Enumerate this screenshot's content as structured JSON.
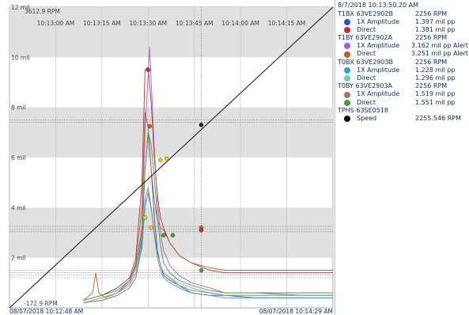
{
  "chart_data": {
    "type": "line",
    "y_axis": {
      "unit": "mil",
      "ylim": [
        0,
        12
      ],
      "tick_labels": [
        "2 mil",
        "4 mil",
        "6 mil",
        "8 mil",
        "10 mil",
        "12 mil"
      ]
    },
    "speed_axis": {
      "max_label": "3612.9 RPM",
      "min_label": "-172.9 RPM"
    },
    "x_axis": {
      "time_ticks": [
        "10:13:00 AM",
        "10:13:15 AM",
        "10:13:30 AM",
        "10:13:45 AM",
        "10:14:00 AM",
        "10:14:15 AM"
      ],
      "start_label": "08/07/2018 10:12:48 AM",
      "end_label": "08/07/2018 10:14:29 AM"
    },
    "cursor_time": "8/7/2018 10:13:50.20 AM",
    "shaded_bands": [
      [
        2,
        4
      ],
      [
        6,
        8
      ],
      [
        10,
        12
      ]
    ],
    "alert_lines_mil": [
      1.2,
      1.3,
      1.4,
      1.5,
      3.05,
      3.15,
      3.25,
      7.4,
      7.5
    ],
    "series": [
      {
        "name": "T1BX 63VE2902B 1X Amplitude",
        "color": "#2a4fd8",
        "x": [
          48,
          60,
          70,
          78,
          82,
          86,
          88,
          90,
          92,
          94,
          96,
          98,
          100,
          104,
          110,
          118,
          130,
          140,
          160,
          190,
          210
        ],
        "y": [
          0.2,
          0.4,
          0.6,
          0.9,
          1.4,
          2.8,
          5.5,
          7.0,
          5.5,
          3.6,
          2.3,
          1.7,
          1.3,
          1.1,
          0.9,
          0.6,
          0.5,
          0.5,
          0.4,
          0.4,
          0.4
        ]
      },
      {
        "name": "T1BX 63VE2902B Direct",
        "color": "#c03030",
        "x": [
          48,
          60,
          70,
          78,
          82,
          86,
          88,
          90,
          92,
          94,
          96,
          98,
          100,
          104,
          110,
          118,
          130,
          140,
          160,
          190,
          210
        ],
        "y": [
          0.3,
          0.5,
          0.8,
          1.2,
          2.0,
          5.0,
          9.5,
          9.6,
          8.2,
          6.0,
          4.5,
          3.6,
          3.2,
          2.6,
          2.1,
          1.8,
          1.5,
          1.4,
          1.4,
          1.4,
          1.4
        ]
      },
      {
        "name": "T1BY 63VE2902A 1X Amplitude",
        "color": "#a060d0",
        "x": [
          48,
          60,
          70,
          78,
          82,
          86,
          88,
          90,
          91,
          92,
          94,
          96,
          98,
          100,
          104,
          110,
          118,
          130,
          140,
          160,
          190,
          210
        ],
        "y": [
          0.2,
          0.4,
          0.6,
          1.0,
          1.6,
          3.2,
          7.0,
          9.3,
          10.4,
          9.0,
          6.4,
          4.2,
          3.0,
          2.3,
          1.7,
          1.3,
          1.0,
          0.8,
          0.6,
          0.6,
          0.5,
          0.5
        ]
      },
      {
        "name": "T1BY 63VE2902A Direct",
        "color": "#b8602a",
        "x": [
          48,
          54,
          56,
          58,
          62,
          70,
          78,
          82,
          86,
          88,
          90,
          92,
          94,
          96,
          98,
          100,
          104,
          110,
          118,
          130,
          140,
          160,
          190,
          210
        ],
        "y": [
          0.3,
          0.6,
          1.4,
          0.6,
          0.4,
          0.6,
          1.1,
          1.8,
          4.0,
          7.8,
          7.2,
          5.5,
          4.3,
          3.5,
          3.2,
          3.1,
          2.6,
          2.1,
          1.8,
          1.6,
          1.5,
          1.5,
          1.5,
          1.5
        ]
      },
      {
        "name": "T0BX 63VE2903B 1X Amplitude",
        "color": "#3a9ec4",
        "x": [
          48,
          60,
          70,
          78,
          82,
          86,
          88,
          90,
          92,
          94,
          96,
          98,
          100,
          104,
          110,
          118,
          130,
          140,
          160,
          190,
          210
        ],
        "y": [
          0.2,
          0.3,
          0.5,
          0.8,
          1.2,
          2.4,
          4.0,
          4.6,
          4.0,
          2.9,
          2.0,
          1.5,
          1.2,
          1.0,
          0.8,
          0.6,
          0.5,
          0.4,
          0.4,
          0.4,
          0.4
        ]
      },
      {
        "name": "T0BX 63VE2903B Direct",
        "color": "#7bc6c0",
        "x": [
          48,
          60,
          70,
          78,
          82,
          86,
          88,
          90,
          92,
          94,
          96,
          98,
          100,
          104,
          110,
          118,
          130,
          140,
          160,
          190,
          210
        ],
        "y": [
          0.2,
          0.4,
          0.6,
          0.9,
          1.4,
          2.6,
          4.2,
          4.5,
          3.9,
          3.0,
          2.2,
          1.7,
          1.4,
          1.2,
          1.0,
          0.8,
          0.6,
          0.5,
          0.5,
          0.5,
          0.5
        ]
      },
      {
        "name": "T0BY 63VE2903A 1X Amplitude",
        "color": "#9a7a6a",
        "x": [
          48,
          60,
          70,
          78,
          82,
          86,
          88,
          90,
          92,
          94,
          96,
          98,
          100,
          104,
          110,
          118,
          130,
          140,
          160,
          190,
          210
        ],
        "y": [
          0.2,
          0.3,
          0.5,
          0.8,
          1.2,
          2.5,
          4.3,
          4.8,
          4.0,
          3.0,
          2.2,
          1.7,
          1.4,
          1.2,
          0.9,
          0.7,
          0.6,
          0.5,
          0.5,
          0.5,
          0.5
        ]
      },
      {
        "name": "T0BY 63VE2903A Direct",
        "color": "#40a040",
        "x": [
          48,
          60,
          70,
          78,
          82,
          86,
          88,
          90,
          92,
          94,
          96,
          98,
          100,
          104,
          110,
          118,
          130,
          140,
          160,
          190,
          210
        ],
        "y": [
          0.3,
          0.5,
          0.7,
          1.1,
          1.7,
          3.0,
          5.5,
          7.0,
          6.5,
          5.2,
          3.6,
          2.5,
          1.8,
          1.4,
          1.1,
          0.9,
          0.7,
          0.6,
          0.6,
          0.6,
          0.6
        ]
      },
      {
        "name": "TPHS 63SE0518 Speed",
        "color": "#202020",
        "x": [
          0,
          210
        ],
        "y": [
          0,
          12
        ]
      }
    ],
    "cursor_points": [
      {
        "series": "T1BY 63VE2902A Direct",
        "x": 91,
        "y": 7.25,
        "color": "#b8602a"
      },
      {
        "series": "T1BX 63VE2902B Direct",
        "x": 90,
        "y": 9.5,
        "color": "#c03030"
      },
      {
        "series": "TPHS 63SE0518 Speed",
        "x": 124.5,
        "y": 7.3,
        "color": "#202020"
      },
      {
        "series": "T0BY 63VE2903A Direct",
        "x": 100,
        "y": 2.9,
        "color": "#40a040"
      },
      {
        "series": "T0BY 63VE2903A Direct",
        "x": 106,
        "y": 2.9,
        "color": "#40a040"
      },
      {
        "series": "T1BY 63VE2902A Direct",
        "x": 124.5,
        "y": 3.2,
        "color": "#b8602a"
      },
      {
        "series": "T1BX 63VE2902B Direct",
        "x": 124.5,
        "y": 3.1,
        "color": "#c03030"
      },
      {
        "series": "T0BY 63VE2903A Direct",
        "x": 124.5,
        "y": 1.5,
        "color": "#40a040"
      },
      {
        "series": "marker",
        "x": 98,
        "y": 5.9,
        "color": "#e8d020"
      },
      {
        "series": "marker",
        "x": 102,
        "y": 5.95,
        "color": "#e8d020"
      },
      {
        "series": "marker",
        "x": 88,
        "y": 3.6,
        "color": "#e8d020"
      },
      {
        "series": "marker",
        "x": 92,
        "y": 3.2,
        "color": "#e8d020"
      }
    ]
  },
  "legend": {
    "timestamp": "8/7/2018 10:13:50.20 AM",
    "groups": [
      {
        "name": "T1BX 63VE2902B",
        "value": "2256 RPM",
        "rows": [
          {
            "label": "1X Amplitude",
            "value": "1.397 mil pp",
            "color": "#2a4fd8"
          },
          {
            "label": "Direct",
            "value": "1.381 mil pp",
            "color": "#c03030"
          }
        ]
      },
      {
        "name": "T1BY 63VE2902A",
        "value": "2256 RPM",
        "rows": [
          {
            "label": "1X Amplitude",
            "value": "3.162 mil pp Alert",
            "color": "#a060d0"
          },
          {
            "label": "Direct",
            "value": "3.251 mil pp Alert",
            "color": "#b8602a"
          }
        ]
      },
      {
        "name": "T0BX 63VE2903B",
        "value": "2256 RPM",
        "rows": [
          {
            "label": "1X Amplitude",
            "value": "1.228 mil pp",
            "color": "#3a9ec4"
          },
          {
            "label": "Direct",
            "value": "1.296 mil pp",
            "color": "#7bc6c0"
          }
        ]
      },
      {
        "name": "T0BY 63VE2903A",
        "value": "2256 RPM",
        "rows": [
          {
            "label": "1X Amplitude",
            "value": "1.519 mil pp",
            "color": "#9a7a6a"
          },
          {
            "label": "Direct",
            "value": "1.551 mil pp",
            "color": "#40a040"
          }
        ]
      },
      {
        "name": "TPHS 63SE0518",
        "value": "",
        "rows": [
          {
            "label": "Speed",
            "value": "2255.546 RPM",
            "color": "#000000"
          }
        ]
      }
    ]
  }
}
